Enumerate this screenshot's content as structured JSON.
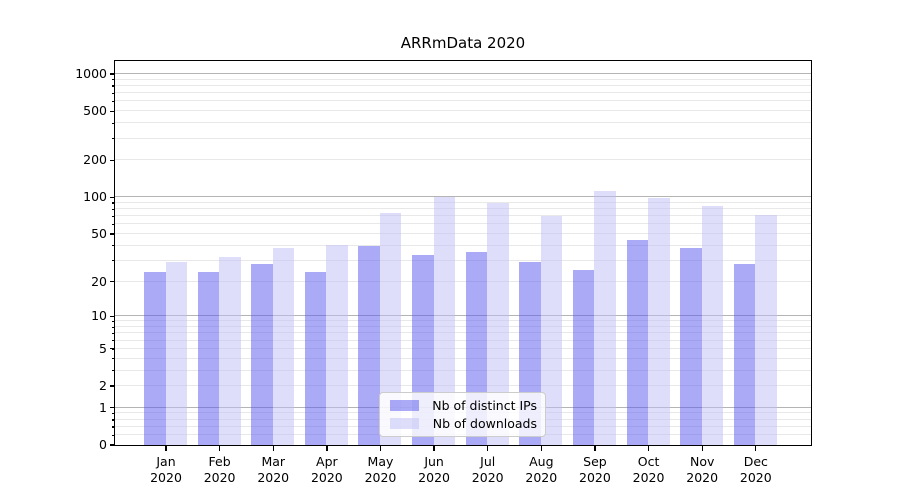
{
  "chart_data": {
    "type": "bar",
    "title": "ARRmData 2020",
    "categories": [
      {
        "month": "Jan",
        "year": "2020"
      },
      {
        "month": "Feb",
        "year": "2020"
      },
      {
        "month": "Mar",
        "year": "2020"
      },
      {
        "month": "Apr",
        "year": "2020"
      },
      {
        "month": "May",
        "year": "2020"
      },
      {
        "month": "Jun",
        "year": "2020"
      },
      {
        "month": "Jul",
        "year": "2020"
      },
      {
        "month": "Aug",
        "year": "2020"
      },
      {
        "month": "Sep",
        "year": "2020"
      },
      {
        "month": "Oct",
        "year": "2020"
      },
      {
        "month": "Nov",
        "year": "2020"
      },
      {
        "month": "Dec",
        "year": "2020"
      }
    ],
    "series": [
      {
        "name": "Nb of distinct IPs",
        "color": "#5555ee",
        "opacity": 0.5,
        "values": [
          24,
          24,
          28,
          24,
          39,
          33,
          35,
          29,
          25,
          44,
          38,
          28
        ]
      },
      {
        "name": "Nb of downloads",
        "color": "#bdbdf5",
        "opacity": 0.5,
        "values": [
          29,
          32,
          38,
          40,
          73,
          100,
          88,
          69,
          112,
          97,
          84,
          71
        ]
      }
    ],
    "yaxis": {
      "scale": "symlog",
      "tick_labels": [
        "0",
        "1",
        "2",
        "5",
        "10",
        "20",
        "50",
        "100",
        "200",
        "500",
        "1000"
      ],
      "ticks": [
        0,
        1,
        2,
        5,
        10,
        20,
        50,
        100,
        200,
        500,
        1000
      ],
      "range": [
        0,
        1280
      ],
      "grid": true,
      "major_grid_color": "#b4b4b4",
      "minor_grid_color": "#e8e8e8"
    },
    "xlabel": "",
    "ylabel": "",
    "legend_position": "bottom-center-inside"
  }
}
